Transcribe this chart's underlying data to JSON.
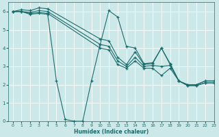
{
  "xlabel": "Humidex (Indice chaleur)",
  "bg_color": "#cde8e8",
  "grid_color": "#ffffff",
  "line_color": "#1a6b6b",
  "xlim": [
    -0.5,
    23
  ],
  "ylim": [
    0,
    6.5
  ],
  "xticks": [
    0,
    1,
    2,
    3,
    4,
    5,
    6,
    7,
    8,
    9,
    10,
    11,
    12,
    13,
    14,
    15,
    16,
    17,
    18,
    19,
    20,
    21,
    22,
    23
  ],
  "yticks": [
    0,
    1,
    2,
    3,
    4,
    5,
    6
  ],
  "line1_x": [
    0,
    1,
    2,
    3,
    4,
    10,
    11,
    12,
    13,
    14,
    15,
    16,
    17,
    18,
    19,
    20,
    21,
    22,
    23
  ],
  "line1_y": [
    6.0,
    6.1,
    6.05,
    6.2,
    6.15,
    4.5,
    4.4,
    3.5,
    3.1,
    3.8,
    3.1,
    3.15,
    4.0,
    3.1,
    2.2,
    2.0,
    2.0,
    2.2,
    2.2
  ],
  "line2_x": [
    0,
    1,
    2,
    3,
    4,
    10,
    11,
    12,
    13,
    14,
    15,
    16,
    17,
    18,
    19,
    20,
    21,
    22,
    23
  ],
  "line2_y": [
    6.0,
    6.0,
    5.95,
    6.05,
    6.0,
    4.2,
    4.1,
    3.3,
    3.0,
    3.5,
    3.0,
    3.05,
    3.0,
    3.05,
    2.2,
    2.0,
    2.0,
    2.2,
    2.2
  ],
  "line3_x": [
    0,
    1,
    2,
    3,
    4,
    10,
    11,
    12,
    13,
    14,
    15,
    16,
    17,
    18,
    19,
    20,
    21,
    22,
    23
  ],
  "line3_y": [
    6.0,
    6.0,
    5.9,
    5.95,
    5.9,
    4.0,
    3.9,
    3.1,
    2.9,
    3.3,
    2.9,
    2.9,
    2.5,
    2.9,
    2.2,
    1.95,
    1.95,
    2.1,
    2.1
  ],
  "line4_x": [
    0,
    1,
    2,
    3,
    4,
    5,
    6,
    7,
    8,
    9,
    10,
    11,
    12,
    13,
    14,
    15,
    16,
    17,
    18,
    19,
    20,
    21,
    22,
    23
  ],
  "line4_y": [
    6.0,
    6.0,
    5.85,
    5.9,
    5.85,
    2.2,
    0.1,
    0.0,
    0.0,
    2.2,
    4.2,
    6.05,
    5.7,
    4.1,
    4.0,
    3.15,
    3.2,
    4.0,
    3.15,
    2.2,
    1.95,
    1.95,
    2.1,
    2.1
  ]
}
